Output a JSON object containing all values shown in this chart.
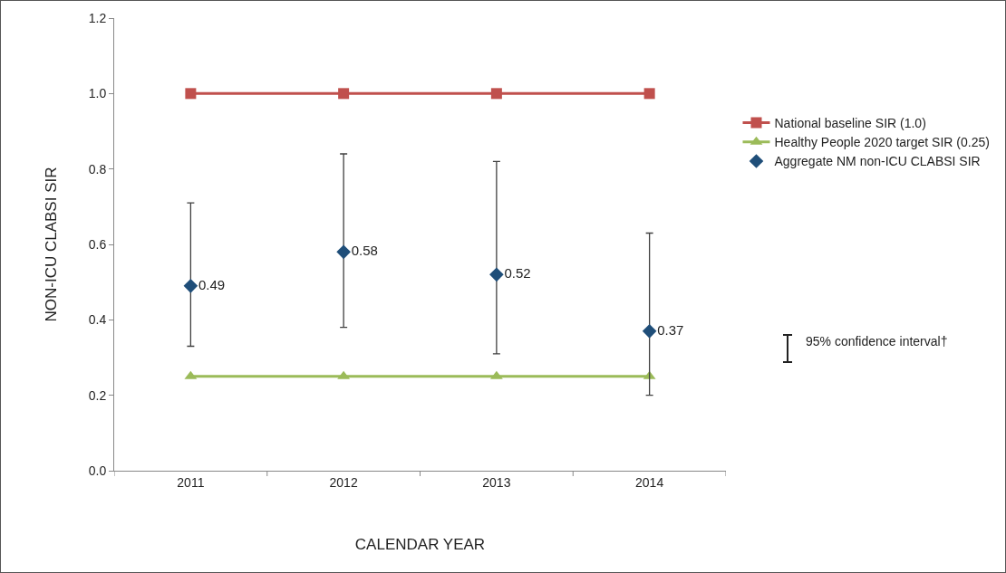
{
  "chart_data": {
    "type": "line",
    "xlabel": "CALENDAR YEAR",
    "ylabel": "NON-ICU CLABSI SIR",
    "categories": [
      "2011",
      "2012",
      "2013",
      "2014"
    ],
    "series": [
      {
        "name": "National baseline SIR (1.0)",
        "color": "#c0504d",
        "marker": "square",
        "values": [
          1.0,
          1.0,
          1.0,
          1.0
        ]
      },
      {
        "name": "Healthy People 2020 target SIR (0.25)",
        "color": "#9bbb59",
        "marker": "triangle",
        "values": [
          0.25,
          0.25,
          0.25,
          0.25
        ]
      },
      {
        "name": "Aggregate NM non-ICU CLABSI SIR",
        "type": "scatter",
        "color": "#1f4e79",
        "marker": "diamond",
        "values": [
          0.49,
          0.58,
          0.52,
          0.37
        ],
        "errors": [
          [
            0.33,
            0.71
          ],
          [
            0.38,
            0.84
          ],
          [
            0.31,
            0.82
          ],
          [
            0.2,
            0.63
          ]
        ],
        "data_labels": true
      }
    ],
    "ylim": [
      0,
      1.2
    ],
    "yticks": [
      {
        "value": 0,
        "label": "0.0"
      },
      {
        "value": 0.2,
        "label": "0.2"
      },
      {
        "value": 0.4,
        "label": "0.4"
      },
      {
        "value": 0.6,
        "label": "0.6"
      },
      {
        "value": 0.8,
        "label": "0.8"
      },
      {
        "value": 1,
        "label": "1.0"
      },
      {
        "value": 1.2,
        "label": "1.2"
      }
    ],
    "grid": false,
    "legend": "right",
    "annotations": [
      "95% confidence interval†"
    ]
  }
}
